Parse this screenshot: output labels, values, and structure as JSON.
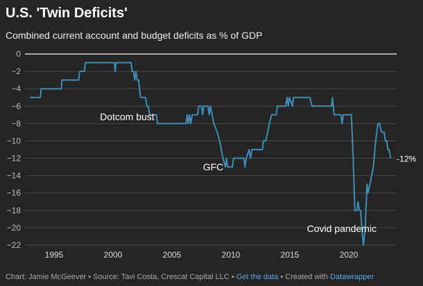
{
  "title": "U.S. 'Twin Deficits'",
  "subtitle": "Combined current account and budget deficits as % of GDP",
  "footer": {
    "chart_credit": "Chart: Jamie McGeever",
    "sep1": " • ",
    "source": "Source: Tavi Costa, Crescat Capital LLC",
    "sep2": " • ",
    "get_data_link": "Get the data",
    "sep3": " • ",
    "created_with": "Created with ",
    "datawrapper_link": "Datawrapper"
  },
  "colors": {
    "background": "#252525",
    "line": "#3b8fb9",
    "grid": "#4a4a4a",
    "zero_line": "#ffffff",
    "link": "#5aa9e6"
  },
  "chart_data": {
    "type": "line",
    "title": "U.S. 'Twin Deficits'",
    "xlim": [
      1992.9,
      2023.6
    ],
    "ylim": [
      -22,
      0
    ],
    "grid": true,
    "x_ticks": [
      "1995",
      "2000",
      "2005",
      "2010",
      "2015",
      "2020"
    ],
    "y_ticks": [
      "0",
      "-2",
      "-4",
      "-6",
      "-8",
      "-10",
      "-12",
      "-14",
      "-16",
      "-18",
      "-20",
      "-22"
    ],
    "annotations": [
      {
        "text": "Dotcom bust",
        "x": 2001.2,
        "y": -7.2
      },
      {
        "text": "GFC",
        "x": 2008.5,
        "y": -13
      },
      {
        "text": "Covid pandemic",
        "x": 2019.4,
        "y": -20.1
      },
      {
        "text": "-12%",
        "x": 2023.6,
        "y": -12
      }
    ],
    "series": [
      {
        "points": [
          [
            1992.96,
            -5
          ],
          [
            1993.84,
            -5
          ],
          [
            1993.9,
            -4
          ],
          [
            1995.61,
            -4
          ],
          [
            1995.66,
            -3
          ],
          [
            1997.08,
            -3
          ],
          [
            1997.17,
            -2
          ],
          [
            1997.57,
            -2
          ],
          [
            1997.66,
            -1
          ],
          [
            2000.12,
            -1
          ],
          [
            2000.18,
            -2
          ],
          [
            2000.25,
            -1
          ],
          [
            2001.53,
            -1
          ],
          [
            2001.63,
            -2
          ],
          [
            2001.74,
            -2
          ],
          [
            2001.84,
            -3
          ],
          [
            2001.94,
            -2
          ],
          [
            2002.04,
            -3
          ],
          [
            2002.17,
            -3
          ],
          [
            2002.33,
            -5
          ],
          [
            2002.76,
            -5
          ],
          [
            2002.88,
            -6
          ],
          [
            2003.0,
            -6
          ],
          [
            2003.1,
            -7
          ],
          [
            2003.68,
            -7
          ],
          [
            2003.78,
            -8
          ],
          [
            2006.19,
            -8
          ],
          [
            2006.29,
            -7
          ],
          [
            2006.39,
            -8
          ],
          [
            2006.49,
            -7
          ],
          [
            2006.59,
            -8
          ],
          [
            2006.72,
            -7
          ],
          [
            2007.17,
            -7
          ],
          [
            2007.27,
            -6
          ],
          [
            2007.51,
            -6
          ],
          [
            2007.6,
            -7
          ],
          [
            2007.7,
            -6
          ],
          [
            2008.06,
            -6
          ],
          [
            2008.16,
            -7
          ],
          [
            2008.25,
            -6
          ],
          [
            2008.41,
            -7
          ],
          [
            2008.55,
            -8
          ],
          [
            2008.84,
            -9
          ],
          [
            2009.04,
            -10
          ],
          [
            2009.33,
            -12
          ],
          [
            2009.53,
            -13
          ],
          [
            2009.63,
            -12
          ],
          [
            2009.73,
            -13
          ],
          [
            2010.12,
            -13
          ],
          [
            2010.22,
            -12
          ],
          [
            2011.1,
            -12
          ],
          [
            2011.2,
            -13
          ],
          [
            2011.3,
            -12
          ],
          [
            2011.55,
            -11
          ],
          [
            2011.65,
            -12
          ],
          [
            2011.79,
            -11
          ],
          [
            2012.67,
            -11
          ],
          [
            2012.77,
            -10
          ],
          [
            2012.96,
            -10
          ],
          [
            2013.12,
            -9
          ],
          [
            2013.26,
            -8
          ],
          [
            2013.45,
            -7
          ],
          [
            2013.84,
            -7
          ],
          [
            2013.94,
            -6
          ],
          [
            2014.63,
            -6
          ],
          [
            2014.77,
            -5
          ],
          [
            2014.86,
            -6
          ],
          [
            2014.96,
            -5
          ],
          [
            2015.22,
            -6
          ],
          [
            2015.31,
            -5
          ],
          [
            2016.69,
            -5
          ],
          [
            2016.88,
            -6
          ],
          [
            2018.55,
            -6
          ],
          [
            2018.61,
            -5
          ],
          [
            2018.75,
            -7
          ],
          [
            2019.33,
            -7
          ],
          [
            2019.43,
            -8
          ],
          [
            2019.53,
            -7
          ],
          [
            2020.22,
            -7
          ],
          [
            2020.37,
            -12
          ],
          [
            2020.51,
            -18
          ],
          [
            2020.71,
            -18
          ],
          [
            2020.77,
            -17
          ],
          [
            2020.9,
            -18
          ],
          [
            2021.0,
            -18
          ],
          [
            2021.1,
            -20
          ],
          [
            2021.24,
            -22
          ],
          [
            2021.39,
            -20
          ],
          [
            2021.55,
            -15
          ],
          [
            2021.63,
            -16
          ],
          [
            2021.79,
            -15
          ],
          [
            2022.08,
            -13
          ],
          [
            2022.28,
            -10
          ],
          [
            2022.47,
            -8
          ],
          [
            2022.61,
            -8
          ],
          [
            2022.77,
            -9
          ],
          [
            2023.0,
            -9
          ],
          [
            2023.1,
            -10
          ],
          [
            2023.22,
            -10
          ],
          [
            2023.31,
            -11
          ],
          [
            2023.41,
            -11
          ],
          [
            2023.55,
            -12
          ]
        ]
      }
    ]
  }
}
